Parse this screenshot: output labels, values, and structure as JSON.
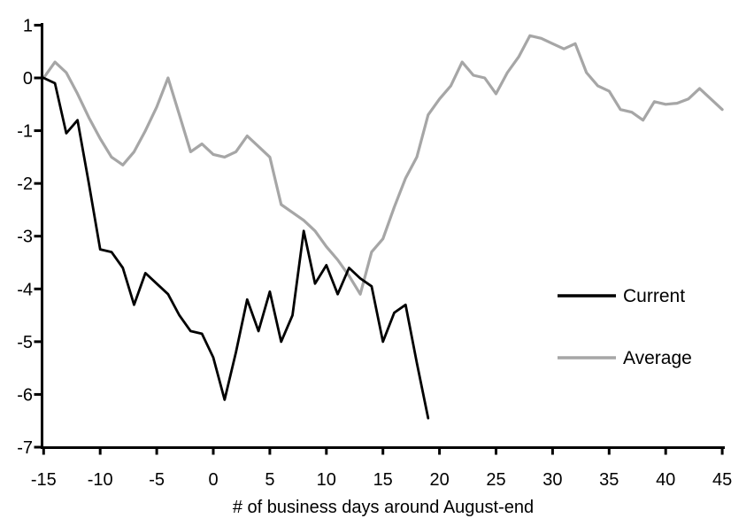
{
  "chart_data": {
    "type": "line",
    "title": "",
    "xlabel": "# of business days around August-end",
    "ylabel": "",
    "xlim": [
      -15,
      45
    ],
    "ylim": [
      -7,
      1
    ],
    "x_ticks": [
      -15,
      -10,
      -5,
      0,
      5,
      10,
      15,
      20,
      25,
      30,
      35,
      40,
      45
    ],
    "y_ticks": [
      1,
      0,
      -1,
      -2,
      -3,
      -4,
      -5,
      -6,
      -7
    ],
    "grid": false,
    "legend_position": "middle-right",
    "axis_color": "#000000",
    "series": [
      {
        "name": "Current",
        "color": "#000000",
        "x": [
          -15,
          -14,
          -13,
          -12,
          -11,
          -10,
          -9,
          -8,
          -7,
          -6,
          -5,
          -4,
          -3,
          -2,
          -1,
          0,
          1,
          2,
          3,
          4,
          5,
          6,
          7,
          8,
          9,
          10,
          11,
          12,
          13,
          14,
          15,
          16,
          17,
          18,
          19
        ],
        "values": [
          0.0,
          -0.1,
          -1.05,
          -0.8,
          -2.0,
          -3.25,
          -3.3,
          -3.6,
          -4.3,
          -3.7,
          -3.9,
          -4.1,
          -4.5,
          -4.8,
          -4.85,
          -5.3,
          -6.1,
          -5.2,
          -4.2,
          -4.8,
          -4.05,
          -5.0,
          -4.5,
          -2.9,
          -3.9,
          -3.55,
          -4.1,
          -3.6,
          -3.8,
          -3.95,
          -5.0,
          -4.45,
          -4.3,
          -5.4,
          -6.45
        ]
      },
      {
        "name": "Average",
        "color": "#a6a6a6",
        "x": [
          -15,
          -14,
          -13,
          -12,
          -11,
          -10,
          -9,
          -8,
          -7,
          -6,
          -5,
          -4,
          -3,
          -2,
          -1,
          0,
          1,
          2,
          3,
          4,
          5,
          6,
          7,
          8,
          9,
          10,
          11,
          12,
          13,
          14,
          15,
          16,
          17,
          18,
          19,
          20,
          21,
          22,
          23,
          24,
          25,
          26,
          27,
          28,
          29,
          30,
          31,
          32,
          33,
          34,
          35,
          36,
          37,
          38,
          39,
          40,
          41,
          42,
          43,
          44,
          45
        ],
        "values": [
          0.0,
          0.3,
          0.1,
          -0.3,
          -0.75,
          -1.15,
          -1.5,
          -1.65,
          -1.4,
          -1.0,
          -0.55,
          0.0,
          -0.7,
          -1.4,
          -1.25,
          -1.45,
          -1.5,
          -1.4,
          -1.1,
          -1.3,
          -1.5,
          -2.4,
          -2.55,
          -2.7,
          -2.9,
          -3.2,
          -3.45,
          -3.75,
          -4.1,
          -3.3,
          -3.05,
          -2.45,
          -1.9,
          -1.5,
          -0.7,
          -0.4,
          -0.15,
          0.3,
          0.05,
          0.0,
          -0.3,
          0.1,
          0.4,
          0.8,
          0.75,
          0.65,
          0.55,
          0.65,
          0.1,
          -0.15,
          -0.25,
          -0.6,
          -0.65,
          -0.8,
          -0.45,
          -0.5,
          -0.48,
          -0.4,
          -0.2,
          -0.4,
          -0.6
        ]
      }
    ]
  },
  "legend": {
    "items": [
      {
        "label": "Current",
        "color": "#000000"
      },
      {
        "label": "Average",
        "color": "#a6a6a6"
      }
    ]
  }
}
